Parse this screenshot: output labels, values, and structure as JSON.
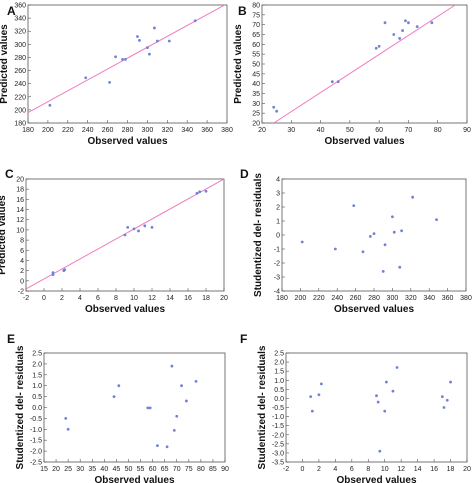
{
  "chart_data": [
    {
      "type": "scatter",
      "panel_label": "A",
      "xlabel": "Observed values",
      "ylabel": "Predicted values",
      "xlim": [
        180,
        380
      ],
      "ylim": [
        180,
        360
      ],
      "xticks": [
        180,
        200,
        220,
        240,
        260,
        280,
        300,
        320,
        340,
        360,
        380
      ],
      "yticks": [
        180,
        200,
        220,
        240,
        260,
        280,
        300,
        320,
        340,
        360
      ],
      "fit_line": [
        [
          180,
          196
        ],
        [
          380,
          362
        ]
      ],
      "points": [
        [
          202,
          207
        ],
        [
          238,
          249
        ],
        [
          262,
          242
        ],
        [
          268,
          281
        ],
        [
          275,
          277
        ],
        [
          278,
          277
        ],
        [
          290,
          312
        ],
        [
          292,
          306
        ],
        [
          300,
          295
        ],
        [
          302,
          285
        ],
        [
          307,
          325
        ],
        [
          310,
          305
        ],
        [
          322,
          305
        ],
        [
          348,
          336
        ]
      ],
      "colors": {
        "points": "#6f82d8",
        "line": "#f27cc0"
      }
    },
    {
      "type": "scatter",
      "panel_label": "B",
      "xlabel": "Observed values",
      "ylabel": "Predicted values",
      "xlim": [
        20,
        90
      ],
      "ylim": [
        20,
        80
      ],
      "xticks": [
        20,
        30,
        40,
        50,
        60,
        70,
        80,
        90
      ],
      "yticks": [
        20,
        25,
        30,
        35,
        40,
        45,
        50,
        55,
        60,
        65,
        70,
        75,
        80
      ],
      "fit_line": [
        [
          24,
          20
        ],
        [
          86,
          80
        ]
      ],
      "points": [
        [
          24,
          28
        ],
        [
          25,
          26
        ],
        [
          44,
          41
        ],
        [
          46,
          41
        ],
        [
          59,
          58
        ],
        [
          60,
          59
        ],
        [
          62,
          71
        ],
        [
          65,
          65
        ],
        [
          67,
          63
        ],
        [
          68,
          67
        ],
        [
          69,
          72
        ],
        [
          70,
          71
        ],
        [
          73,
          69
        ],
        [
          78,
          71
        ]
      ],
      "colors": {
        "points": "#6f82d8",
        "line": "#f27cc0"
      }
    },
    {
      "type": "scatter",
      "panel_label": "C",
      "xlabel": "Observed values",
      "ylabel": "Predicted values",
      "xlim": [
        -2,
        20
      ],
      "ylim": [
        -2,
        20
      ],
      "xticks": [
        -2,
        0,
        2,
        4,
        6,
        8,
        10,
        12,
        14,
        16,
        18,
        20
      ],
      "yticks": [
        -2,
        0,
        2,
        4,
        6,
        8,
        10,
        12,
        14,
        16,
        18,
        20
      ],
      "fit_line": [
        [
          -2,
          -1.6
        ],
        [
          20,
          20
        ]
      ],
      "points": [
        [
          1,
          1.2
        ],
        [
          1,
          1.6
        ],
        [
          2.2,
          2
        ],
        [
          2.3,
          2.2
        ],
        [
          9,
          9
        ],
        [
          9.3,
          10.5
        ],
        [
          10,
          10.2
        ],
        [
          10.5,
          9.8
        ],
        [
          11.2,
          10.8
        ],
        [
          12,
          10.5
        ],
        [
          17,
          17.2
        ],
        [
          17.3,
          17.5
        ],
        [
          18,
          17.6
        ]
      ],
      "colors": {
        "points": "#6f82d8",
        "line": "#f27cc0"
      }
    },
    {
      "type": "scatter",
      "panel_label": "D",
      "xlabel": "Observed values",
      "ylabel": "Studentized del- residuals",
      "xlim": [
        180,
        380
      ],
      "ylim": [
        -4,
        4
      ],
      "xticks": [
        180,
        200,
        220,
        240,
        260,
        280,
        300,
        320,
        340,
        360,
        380
      ],
      "yticks": [
        -4,
        -3,
        -2,
        -1,
        0,
        1,
        2,
        3,
        4
      ],
      "points": [
        [
          202,
          -0.5
        ],
        [
          238,
          -1
        ],
        [
          258,
          2.1
        ],
        [
          268,
          -1.2
        ],
        [
          276,
          -0.1
        ],
        [
          280,
          0.1
        ],
        [
          290,
          -2.6
        ],
        [
          292,
          -0.7
        ],
        [
          300,
          1.3
        ],
        [
          302,
          0.2
        ],
        [
          308,
          -2.3
        ],
        [
          310,
          0.3
        ],
        [
          322,
          2.7
        ],
        [
          348,
          1.1
        ]
      ],
      "colors": {
        "points": "#6f82d8"
      }
    },
    {
      "type": "scatter",
      "panel_label": "E",
      "xlabel": "Observed values",
      "ylabel": "Studentized del- residuals",
      "xlim": [
        15,
        90
      ],
      "ylim": [
        -2.5,
        2.5
      ],
      "xticks": [
        15,
        20,
        25,
        30,
        35,
        40,
        45,
        50,
        55,
        60,
        65,
        70,
        75,
        80,
        85,
        90
      ],
      "yticks": [
        -2.5,
        -2.0,
        -1.5,
        -1.0,
        -0.5,
        0.0,
        0.5,
        1.0,
        1.5,
        2.0,
        2.5
      ],
      "points": [
        [
          24,
          -0.5
        ],
        [
          25,
          -1
        ],
        [
          44,
          0.5
        ],
        [
          46,
          1
        ],
        [
          58,
          -0.02
        ],
        [
          59,
          -0.02
        ],
        [
          62,
          -1.75
        ],
        [
          66,
          -1.8
        ],
        [
          68,
          1.9
        ],
        [
          69,
          -1.05
        ],
        [
          70,
          -0.4
        ],
        [
          72,
          1
        ],
        [
          74,
          0.3
        ],
        [
          78,
          1.2
        ]
      ],
      "colors": {
        "points": "#6f82d8"
      }
    },
    {
      "type": "scatter",
      "panel_label": "F",
      "xlabel": "Observed values",
      "ylabel": "Studentized del- residuals",
      "xlim": [
        -2,
        20
      ],
      "ylim": [
        -3.5,
        2.5
      ],
      "xticks": [
        -2,
        0,
        2,
        4,
        6,
        8,
        10,
        12,
        14,
        16,
        18,
        20
      ],
      "yticks": [
        -3.5,
        -3.0,
        -2.5,
        -2.0,
        -1.5,
        -1.0,
        -0.5,
        0.0,
        0.5,
        1.0,
        1.5,
        2.0,
        2.5
      ],
      "points": [
        [
          1,
          0.1
        ],
        [
          1.2,
          -0.7
        ],
        [
          2,
          0.2
        ],
        [
          2.3,
          0.8
        ],
        [
          9,
          0.15
        ],
        [
          9.2,
          -0.2
        ],
        [
          9.4,
          -2.9
        ],
        [
          10,
          -0.7
        ],
        [
          10.2,
          0.9
        ],
        [
          11,
          0.4
        ],
        [
          11.5,
          1.7
        ],
        [
          17,
          0.1
        ],
        [
          17.2,
          -0.5
        ],
        [
          17.6,
          -0.1
        ],
        [
          18,
          0.9
        ]
      ],
      "colors": {
        "points": "#6f82d8"
      }
    }
  ]
}
